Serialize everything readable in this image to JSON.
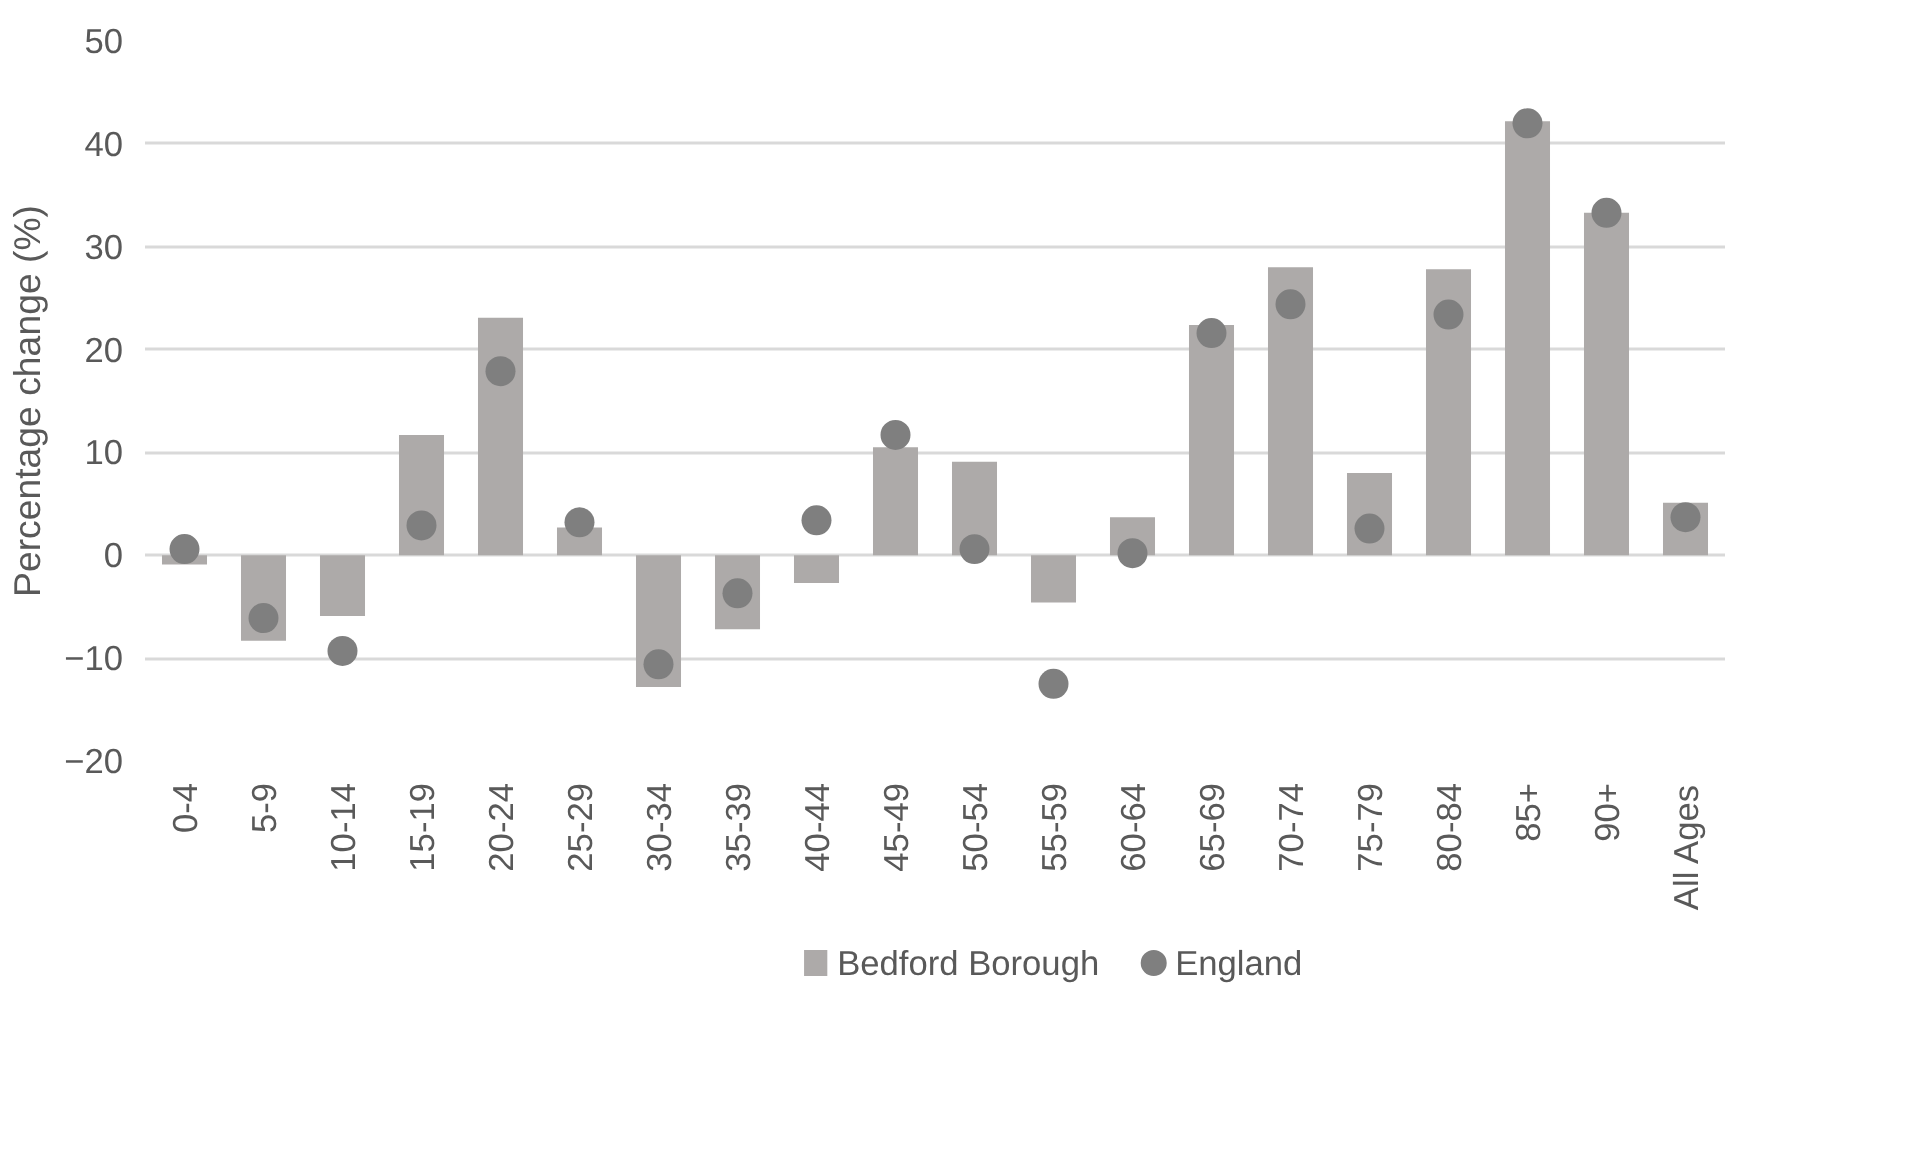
{
  "chart_data": {
    "type": "bar",
    "ylabel": "Percentage change (%)",
    "categories": [
      "0-4",
      "5-9",
      "10-14",
      "15-19",
      "20-24",
      "25-29",
      "30-34",
      "35-39",
      "40-44",
      "45-49",
      "50-54",
      "55-59",
      "60-64",
      "65-69",
      "70-74",
      "75-79",
      "80-84",
      "85+",
      "90+",
      "All Ages"
    ],
    "series": [
      {
        "name": "Bedford Borough",
        "color": "#adaaa9",
        "values": [
          -0.9,
          -8.3,
          -5.9,
          11.7,
          23.1,
          2.7,
          -12.8,
          -7.2,
          -2.7,
          10.5,
          9.1,
          -4.6,
          3.7,
          22.4,
          28.0,
          8.0,
          27.8,
          42.2,
          33.3,
          5.1
        ]
      },
      {
        "name": "England",
        "type": "scatter",
        "color": "#7f7f7f",
        "values": [
          0.6,
          -6.1,
          -9.3,
          2.9,
          17.9,
          3.2,
          -10.6,
          -3.7,
          3.4,
          11.7,
          0.6,
          -12.5,
          0.2,
          21.6,
          24.4,
          2.6,
          23.4,
          42.0,
          33.3,
          3.7
        ]
      }
    ],
    "ylim": [
      -20,
      50
    ],
    "yticks": [
      -20,
      -10,
      0,
      10,
      20,
      30,
      40,
      50
    ],
    "grid": "y",
    "legend": "bottom",
    "marker": "circle"
  }
}
